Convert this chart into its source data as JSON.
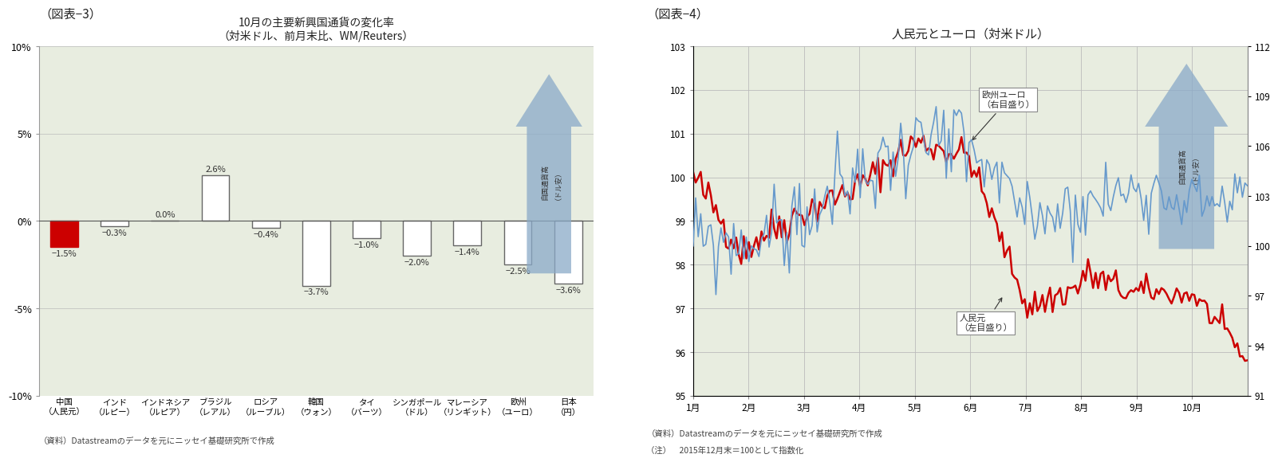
{
  "fig3": {
    "title": "10月の主要新興国通貨の変化率",
    "subtitle": "（対米ドル、前月末比、WM/Reuters）",
    "categories": [
      "中国\n（人民元）",
      "インド\n（ルピー）",
      "インドネシア\n（ルピア）",
      "ブラジル\n（レアル）",
      "ロシア\n（ルーブル）",
      "韓国\n（ウォン）",
      "タイ\n（バーツ）",
      "シンガポール\n（ドル）",
      "マレーシア\n（リンギット）",
      "欧州\n（ユーロ）",
      "日本\n（円）"
    ],
    "values": [
      -1.5,
      -0.3,
      0.0,
      2.6,
      -0.4,
      -3.7,
      -1.0,
      -2.0,
      -1.4,
      -2.5,
      -3.6
    ],
    "bar_colors": [
      "#cc0000",
      "#ffffff",
      "#ffffff",
      "#ffffff",
      "#ffffff",
      "#ffffff",
      "#ffffff",
      "#ffffff",
      "#ffffff",
      "#ffffff",
      "#ffffff"
    ],
    "bar_edge_colors": [
      "#cc0000",
      "#666666",
      "#666666",
      "#666666",
      "#666666",
      "#666666",
      "#666666",
      "#666666",
      "#666666",
      "#666666",
      "#666666"
    ],
    "ylim": [
      -10,
      10
    ],
    "yticks": [
      -10,
      -5,
      0,
      5,
      10
    ],
    "yticklabels": [
      "-10%",
      "-5%",
      "0%",
      "5%",
      "10%"
    ],
    "bg_color": "#e8ede0",
    "arrow_color": "#8aaac8",
    "arrow_text": "自国通貨高\n（ドル安）",
    "source_text": "（資料）Datastreamのデータを元にニッセイ基礎研究所で作成",
    "panel_label": "（図表−3）"
  },
  "fig4": {
    "title": "人民元とユーロ（対米ドル）",
    "ylim_left": [
      95,
      103
    ],
    "ylim_right": [
      91,
      112
    ],
    "yticks_left": [
      95,
      96,
      97,
      98,
      99,
      100,
      101,
      102,
      103
    ],
    "yticks_right": [
      91,
      94,
      97,
      100,
      103,
      106,
      109,
      112
    ],
    "xticklabels": [
      "1月",
      "2月",
      "3月",
      "4月",
      "5月",
      "6月",
      "7月",
      "8月",
      "9月",
      "10月"
    ],
    "rmb_color": "#cc0000",
    "euro_color": "#6699cc",
    "bg_color": "#e8ede0",
    "arrow_color": "#8aaac8",
    "arrow_text": "自国通貨高\n（ドル安）",
    "label_rmb": "人民元\n（左目盛り）",
    "label_euro": "欧州ユーロ\n（右目盛り）",
    "source_text": "（資料）Datastreamのデータを元にニッセイ基礎研究所で作成",
    "note_text": "（注）　2015年12月末＝100として指数化",
    "panel_label": "（図表−4）"
  }
}
